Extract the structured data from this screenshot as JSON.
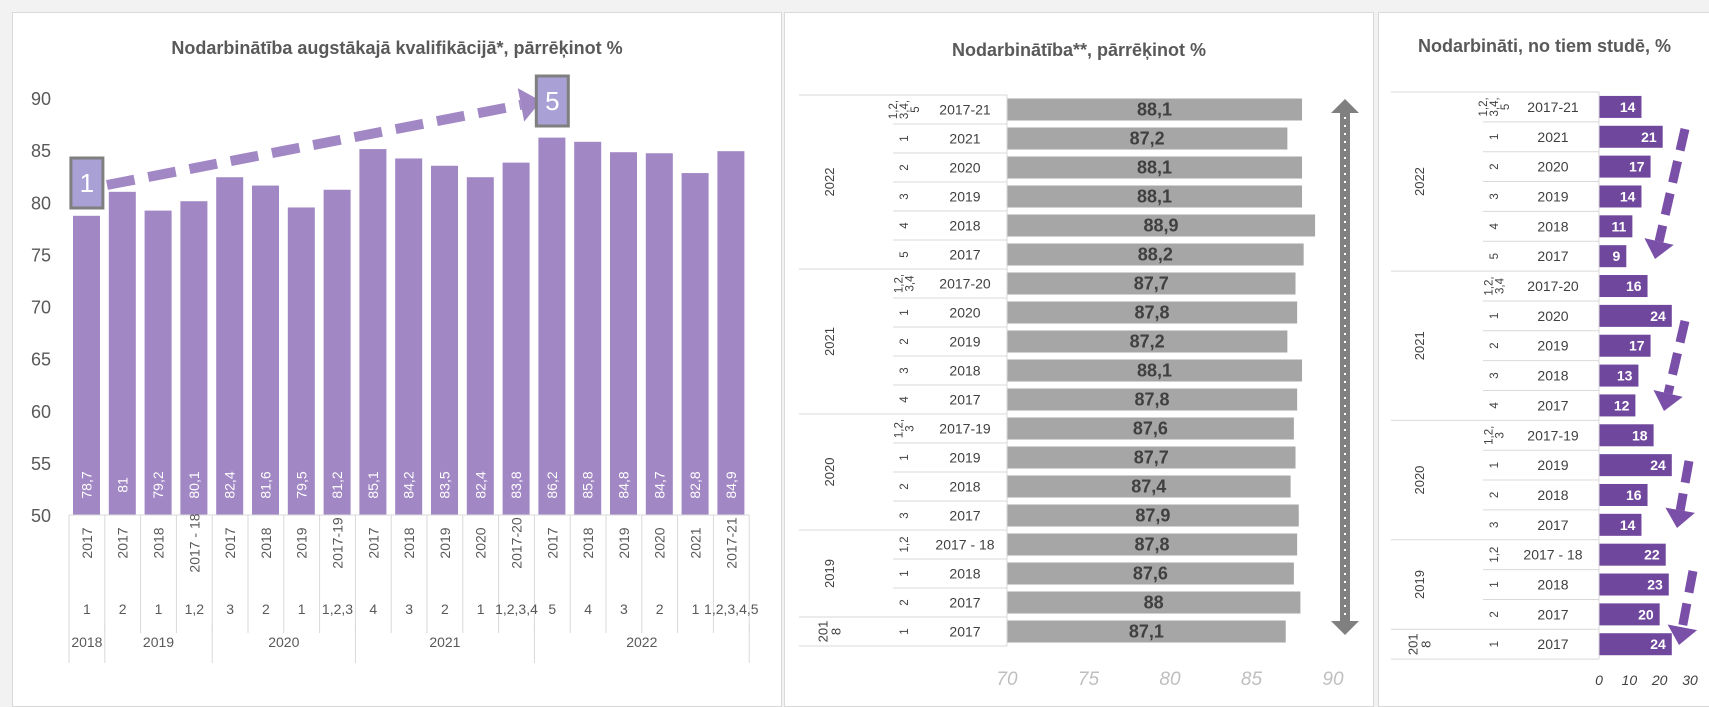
{
  "chart_data": [
    {
      "type": "bar",
      "title": "Nodarbinātība augstākajā kvalifikācijā*, pārrēķinot %",
      "ylim": [
        50,
        90
      ],
      "yticks": [
        50,
        55,
        60,
        65,
        70,
        75,
        80,
        85,
        90
      ],
      "categories": [
        "2017",
        "2017",
        "2018",
        "2017 - 18",
        "2017",
        "2018",
        "2019",
        "2017-19",
        "2017",
        "2018",
        "2019",
        "2020",
        "2017-20",
        "2017",
        "2018",
        "2019",
        "2020",
        "2021",
        "2017-21"
      ],
      "sub_labels": [
        "1",
        "2",
        "1",
        "1,2",
        "3",
        "2",
        "1",
        "1,2,3",
        "4",
        "3",
        "2",
        "1",
        "1,2,3,4",
        "5",
        "4",
        "3",
        "2",
        "1",
        "1,2,3,4,5"
      ],
      "groups": [
        {
          "label": "2018",
          "count": 1
        },
        {
          "label": "2019",
          "count": 3
        },
        {
          "label": "2020",
          "count": 4
        },
        {
          "label": "2021",
          "count": 5
        },
        {
          "label": "2022",
          "count": 6
        }
      ],
      "values": [
        78.7,
        81,
        79.2,
        80.1,
        82.4,
        81.6,
        79.5,
        81.2,
        85.1,
        84.2,
        83.5,
        82.4,
        83.8,
        86.2,
        85.8,
        84.8,
        84.7,
        82.8,
        84.9
      ],
      "data_labels": [
        "78,7",
        "81",
        "79,2",
        "80,1",
        "82,4",
        "81,6",
        "79,5",
        "81,2",
        "85,1",
        "84,2",
        "83,5",
        "82,4",
        "83,8",
        "86,2",
        "85,8",
        "84,8",
        "84,7",
        "82,8",
        "84,9"
      ],
      "annotations": [
        "1",
        "5"
      ],
      "colors": {
        "bar": "#a287c5",
        "label": "#ffffff",
        "arrow": "#a287c5",
        "box_fill": "#a9a0d6",
        "box_border": "#7f7f7f"
      },
      "grid": false
    },
    {
      "type": "bar",
      "orientation": "horizontal",
      "title": "Nodarbinātība**, pārrēķinot  %",
      "xlim": [
        70,
        90
      ],
      "xticks": [
        "70",
        "75",
        "80",
        "85",
        "90"
      ],
      "groups": [
        {
          "label": "2022",
          "count": 6
        },
        {
          "label": "2021",
          "count": 5
        },
        {
          "label": "2020",
          "count": 4
        },
        {
          "label": "2019",
          "count": 3
        },
        {
          "label": "201 8",
          "count": 1
        }
      ],
      "rows": [
        {
          "course": "1,2, 3,4, 5",
          "year": "2017-21",
          "value": 88.1,
          "label": "88,1"
        },
        {
          "course": "1",
          "year": "2021",
          "value": 87.2,
          "label": "87,2"
        },
        {
          "course": "2",
          "year": "2020",
          "value": 88.1,
          "label": "88,1"
        },
        {
          "course": "3",
          "year": "2019",
          "value": 88.1,
          "label": "88,1"
        },
        {
          "course": "4",
          "year": "2018",
          "value": 88.9,
          "label": "88,9"
        },
        {
          "course": "5",
          "year": "2017",
          "value": 88.2,
          "label": "88,2"
        },
        {
          "course": "1,2, 3,4",
          "year": "2017-20",
          "value": 87.7,
          "label": "87,7"
        },
        {
          "course": "1",
          "year": "2020",
          "value": 87.8,
          "label": "87,8"
        },
        {
          "course": "2",
          "year": "2019",
          "value": 87.2,
          "label": "87,2"
        },
        {
          "course": "3",
          "year": "2018",
          "value": 88.1,
          "label": "88,1"
        },
        {
          "course": "4",
          "year": "2017",
          "value": 87.8,
          "label": "87,8"
        },
        {
          "course": "1,2, 3",
          "year": "2017-19",
          "value": 87.6,
          "label": "87,6"
        },
        {
          "course": "1",
          "year": "2019",
          "value": 87.7,
          "label": "87,7"
        },
        {
          "course": "2",
          "year": "2018",
          "value": 87.4,
          "label": "87,4"
        },
        {
          "course": "3",
          "year": "2017",
          "value": 87.9,
          "label": "87,9"
        },
        {
          "course": "1,2",
          "year": "2017 - 18",
          "value": 87.8,
          "label": "87,8"
        },
        {
          "course": "1",
          "year": "2018",
          "value": 87.6,
          "label": "87,6"
        },
        {
          "course": "2",
          "year": "2017",
          "value": 88,
          "label": "88"
        },
        {
          "course": "1",
          "year": "2017",
          "value": 87.1,
          "label": "87,1"
        }
      ],
      "colors": {
        "bar": "#a6a6a6",
        "label": "#404040",
        "arrow": "#808080"
      }
    },
    {
      "type": "bar",
      "orientation": "horizontal",
      "title": "Nodarbināti, no tiem studē, %",
      "xlim": [
        0,
        30
      ],
      "xticks": [
        "0",
        "10",
        "20",
        "30"
      ],
      "groups": [
        {
          "label": "2022",
          "count": 6
        },
        {
          "label": "2021",
          "count": 5
        },
        {
          "label": "2020",
          "count": 4
        },
        {
          "label": "2019",
          "count": 3
        },
        {
          "label": "201 8",
          "count": 1
        }
      ],
      "rows": [
        {
          "course": "1,2, 3,4, 5",
          "year": "2017-21",
          "value": 14,
          "label": "14"
        },
        {
          "course": "1",
          "year": "2021",
          "value": 21,
          "label": "21"
        },
        {
          "course": "2",
          "year": "2020",
          "value": 17,
          "label": "17"
        },
        {
          "course": "3",
          "year": "2019",
          "value": 14,
          "label": "14"
        },
        {
          "course": "4",
          "year": "2018",
          "value": 11,
          "label": "11"
        },
        {
          "course": "5",
          "year": "2017",
          "value": 9,
          "label": "9"
        },
        {
          "course": "1,2, 3,4",
          "year": "2017-20",
          "value": 16,
          "label": "16"
        },
        {
          "course": "1",
          "year": "2020",
          "value": 24,
          "label": "24"
        },
        {
          "course": "2",
          "year": "2019",
          "value": 17,
          "label": "17"
        },
        {
          "course": "3",
          "year": "2018",
          "value": 13,
          "label": "13"
        },
        {
          "course": "4",
          "year": "2017",
          "value": 12,
          "label": "12"
        },
        {
          "course": "1,2, 3",
          "year": "2017-19",
          "value": 18,
          "label": "18"
        },
        {
          "course": "1",
          "year": "2019",
          "value": 24,
          "label": "24"
        },
        {
          "course": "2",
          "year": "2018",
          "value": 16,
          "label": "16"
        },
        {
          "course": "3",
          "year": "2017",
          "value": 14,
          "label": "14"
        },
        {
          "course": "1,2",
          "year": "2017 - 18",
          "value": 22,
          "label": "22"
        },
        {
          "course": "1",
          "year": "2018",
          "value": 23,
          "label": "23"
        },
        {
          "course": "2",
          "year": "2017",
          "value": 20,
          "label": "20"
        },
        {
          "course": "1",
          "year": "2017",
          "value": 24,
          "label": "24"
        }
      ],
      "colors": {
        "bar": "#6f479d",
        "label": "#ffffff",
        "arrow": "#7a4fa8"
      }
    }
  ]
}
